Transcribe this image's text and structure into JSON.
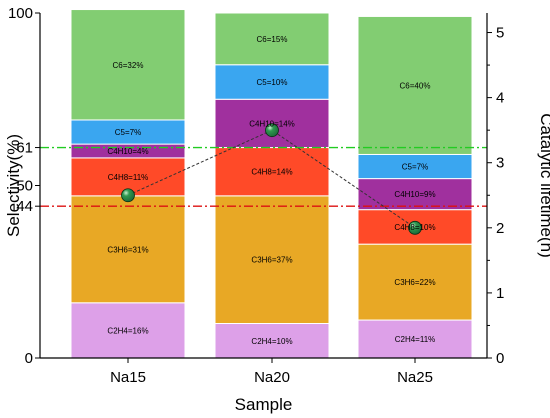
{
  "chart_data": {
    "type": "bar",
    "stacked": true,
    "xlabel": "Sample",
    "ylabel": "Selectivity(%)",
    "y2label": "Catalytic lifetime(h)",
    "categories": [
      "Na15",
      "Na20",
      "Na25"
    ],
    "ylim": [
      0,
      100
    ],
    "y2lim": [
      0,
      5.3
    ],
    "yticks": [
      0,
      44,
      50,
      61,
      100
    ],
    "y2ticks": [
      0,
      1,
      2,
      3,
      4,
      5
    ],
    "series": [
      {
        "name": "C2H4",
        "color": "#dda0e8",
        "values": [
          16,
          10,
          11
        ],
        "labels": [
          "C2H4=16%",
          "C2H4=10%",
          "C2H4=11%"
        ]
      },
      {
        "name": "C3H6",
        "color": "#e8a825",
        "values": [
          31,
          37,
          22
        ],
        "labels": [
          "C3H6=31%",
          "C3H6=37%",
          "C3H6=22%"
        ]
      },
      {
        "name": "C4H8",
        "color": "#ff4a28",
        "values": [
          11,
          14,
          10
        ],
        "labels": [
          "C4H8=11%",
          "C4H8=14%",
          "C4H8=10%"
        ]
      },
      {
        "name": "C4H10",
        "color": "#a0309e",
        "values": [
          4,
          14,
          9
        ],
        "labels": [
          "C4H10=4%",
          "C4H10=14%",
          "C4H10=9%"
        ]
      },
      {
        "name": "C5",
        "color": "#3aa6f0",
        "values": [
          7,
          10,
          7
        ],
        "labels": [
          "C5=7%",
          "C5=10%",
          "C5=7%"
        ]
      },
      {
        "name": "C6",
        "color": "#82cd72",
        "values": [
          32,
          15,
          40
        ],
        "labels": [
          "C6=32%",
          "C6=15%",
          "C6=40%"
        ]
      }
    ],
    "lifetime": {
      "values": [
        2.5,
        3.5,
        2.0
      ],
      "marker_color": "#1d6b3a",
      "line_style": "dashed"
    },
    "reference_lines": [
      {
        "y": 61,
        "color": "#22cc22",
        "style": "dash-dot"
      },
      {
        "y": 44,
        "color": "#dd1111",
        "style": "dash-dot"
      }
    ]
  }
}
